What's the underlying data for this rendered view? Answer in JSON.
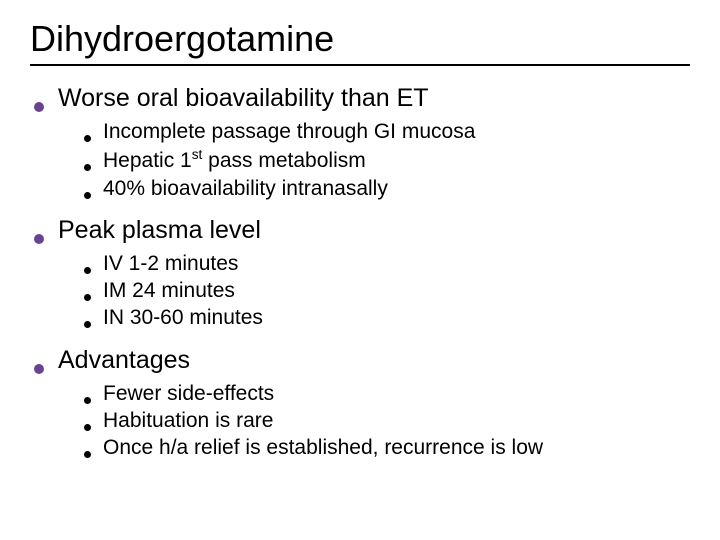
{
  "title": "Dihydroergotamine",
  "colors": {
    "lvl1_bullet": "#6a4390",
    "lvl2_bullet": "#000000",
    "text": "#000000",
    "title_underline": "#000000",
    "background": "#ffffff"
  },
  "typography": {
    "title_fontsize": 36,
    "lvl1_fontsize": 25,
    "lvl2_fontsize": 21,
    "font_family": "Arial"
  },
  "sections": [
    {
      "heading": "Worse oral bioavailability than ET",
      "items": [
        "Incomplete passage through GI mucosa",
        "Hepatic 1st pass metabolism",
        "40% bioavailability intranasally"
      ]
    },
    {
      "heading": "Peak plasma level",
      "items": [
        "IV 1-2 minutes",
        "IM 24 minutes",
        "IN 30-60 minutes"
      ]
    },
    {
      "heading": "Advantages",
      "items": [
        "Fewer side-effects",
        "Habituation is rare",
        "Once h/a relief is established, recurrence is low"
      ]
    }
  ]
}
